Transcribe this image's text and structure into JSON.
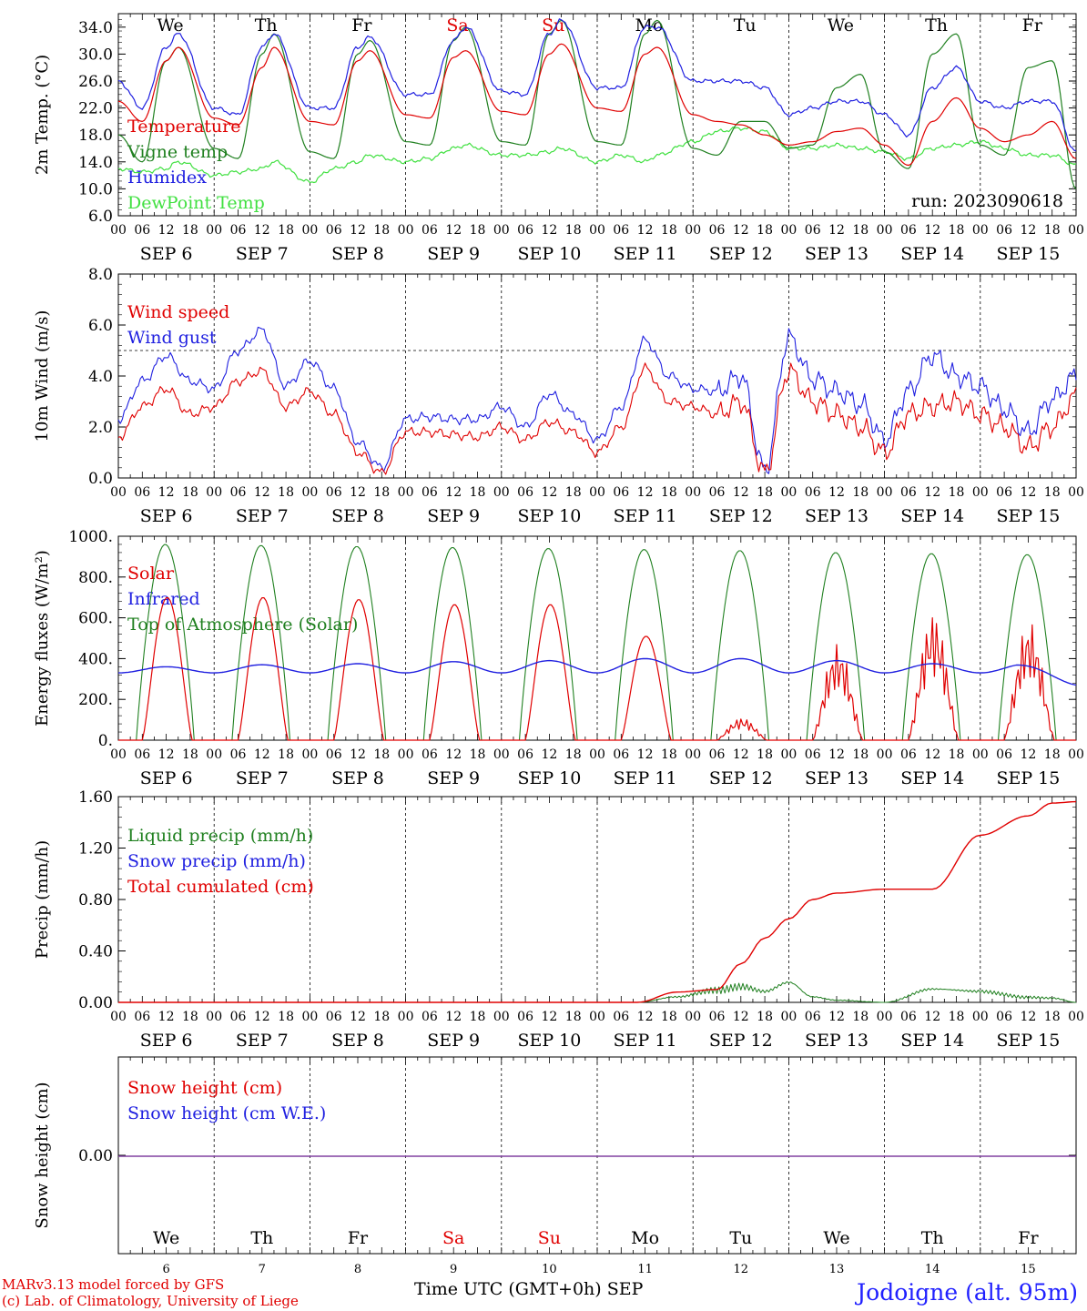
{
  "colors": {
    "red": "#e00000",
    "green": "#208020",
    "blue": "#2020e0",
    "lightgreen": "#40e040",
    "purple": "#8040a0",
    "weekend": "#e00000"
  },
  "days": {
    "names": [
      "We",
      "Th",
      "Fr",
      "Sa",
      "Su",
      "Mo",
      "Tu",
      "We",
      "Th",
      "Fr"
    ],
    "weekend": [
      false,
      false,
      false,
      true,
      true,
      false,
      false,
      false,
      false,
      false
    ],
    "dates": [
      "SEP 6",
      "SEP 7",
      "SEP 8",
      "SEP 9",
      "SEP 10",
      "SEP 11",
      "SEP 12",
      "SEP 13",
      "SEP 14",
      "SEP 15"
    ],
    "numbers": [
      "6",
      "7",
      "8",
      "9",
      "10",
      "11",
      "12",
      "13",
      "14",
      "15"
    ],
    "hours": [
      "00",
      "06",
      "12",
      "18"
    ],
    "final_hour": "00"
  },
  "footer": {
    "credit_line1": "MARv3.13 model forced by GFS",
    "credit_line2": "(c) Lab. of Climatology, University of Liege",
    "time_label": "Time UTC (GMT+0h) SEP",
    "station": "Jodoigne (alt. 95m)"
  },
  "chart_data": [
    {
      "type": "line",
      "ylabel": "2m Temp. (°C)",
      "ylim": [
        6,
        36
      ],
      "yticks": [
        "6.0",
        "10.0",
        "14.0",
        "18.0",
        "22.0",
        "26.0",
        "30.0",
        "34.0"
      ],
      "annotation": "run: 2023090618",
      "x_hours": [
        0,
        6,
        12,
        15,
        24,
        30,
        36,
        39,
        48,
        54,
        60,
        63,
        72,
        78,
        84,
        87,
        96,
        102,
        108,
        111,
        120,
        126,
        132,
        135,
        144,
        150,
        156,
        162,
        168,
        174,
        180,
        186,
        192,
        198,
        204,
        210,
        216,
        222,
        228,
        234,
        240
      ],
      "series": [
        {
          "name": "Temperature",
          "color": "red",
          "values": [
            23,
            20,
            29,
            31,
            20.5,
            19.5,
            28,
            31,
            20,
            19.5,
            29,
            30.5,
            21,
            20.5,
            29.5,
            30.5,
            21.5,
            21,
            30,
            31.5,
            22,
            21.5,
            30,
            31,
            21,
            20,
            19.5,
            18,
            16.5,
            17,
            18.5,
            19,
            16.5,
            13.5,
            20,
            23.5,
            19,
            17,
            18,
            20,
            14.5
          ]
        },
        {
          "name": "Vigne temp",
          "color": "green",
          "values": [
            18,
            14,
            29,
            31,
            16,
            14.5,
            30,
            33,
            15.5,
            14.5,
            30,
            32,
            17,
            16.5,
            32,
            34,
            17,
            16.5,
            33,
            35,
            17,
            16.5,
            33,
            35,
            16,
            15,
            20,
            20,
            16,
            16.5,
            25,
            27,
            15.5,
            13,
            30,
            33,
            16.5,
            15,
            28,
            29,
            10
          ]
        },
        {
          "name": "Humidex",
          "color": "blue",
          "values": [
            26,
            22,
            31,
            33,
            22,
            21,
            31,
            33,
            22,
            22,
            31,
            32.5,
            24,
            24,
            32,
            34,
            24.5,
            24,
            33,
            35,
            25,
            25,
            34,
            34,
            26,
            26,
            26,
            25,
            21,
            22,
            23,
            23,
            21,
            18,
            25,
            28,
            23,
            22,
            23,
            23,
            15.5
          ]
        },
        {
          "name": "DewPoint Temp",
          "color": "lightgreen",
          "values": [
            13,
            12.5,
            13,
            14,
            12,
            12.5,
            13,
            14,
            11,
            13,
            14,
            15,
            14,
            14.5,
            16,
            16.5,
            15,
            15,
            15.5,
            16,
            14,
            15,
            14,
            15,
            17,
            18.5,
            19,
            18.5,
            16,
            16,
            16.5,
            16,
            15.5,
            14.5,
            16,
            16.5,
            17,
            16,
            15,
            15,
            13.5
          ]
        }
      ],
      "legend_placement": "left"
    },
    {
      "type": "line",
      "ylabel": "10m Wind (m/s)",
      "ylim": [
        0,
        8
      ],
      "yticks": [
        "0.0",
        "2.0",
        "4.0",
        "6.0",
        "8.0"
      ],
      "reference_line": 5,
      "x_hours": [
        0,
        6,
        12,
        18,
        24,
        30,
        36,
        42,
        48,
        54,
        60,
        66,
        72,
        78,
        84,
        90,
        96,
        102,
        108,
        114,
        120,
        126,
        132,
        138,
        144,
        150,
        156,
        162,
        168,
        174,
        180,
        186,
        192,
        198,
        204,
        210,
        216,
        222,
        228,
        234,
        240
      ],
      "series": [
        {
          "name": "Wind speed",
          "color": "red",
          "values": [
            1.6,
            2.8,
            3.5,
            2.5,
            2.8,
            3.8,
            4.2,
            2.8,
            3.4,
            2.5,
            1,
            0.2,
            1.8,
            1.8,
            1.7,
            1.6,
            2,
            1.5,
            2.2,
            1.8,
            1,
            2,
            4.3,
            3,
            2.8,
            2.5,
            3,
            0.2,
            4.2,
            3,
            2.5,
            2,
            1,
            2.5,
            2.8,
            3,
            2.5,
            2,
            1.2,
            2,
            3.2
          ]
        },
        {
          "name": "Wind gust",
          "color": "blue",
          "values": [
            2.3,
            3.8,
            4.8,
            3.8,
            3.5,
            5,
            5.8,
            3.6,
            4.6,
            3.5,
            1.4,
            0.4,
            2.3,
            2.4,
            2.3,
            2.3,
            2.8,
            2,
            3.3,
            2.5,
            1.5,
            2.8,
            5.4,
            4,
            3.5,
            3.4,
            4,
            0.3,
            5.5,
            3.9,
            3.4,
            2.9,
            1.5,
            3.4,
            4.8,
            4,
            3.6,
            2.7,
            1.8,
            3.1,
            4
          ]
        }
      ],
      "legend_placement": "left"
    },
    {
      "type": "line",
      "ylabel": "Energy fluxes (W/m²)",
      "ylim": [
        0,
        1000
      ],
      "yticks": [
        "0.",
        "200.",
        "400.",
        "600.",
        "800.",
        "1000."
      ],
      "series": [
        {
          "name": "Solar",
          "color": "red",
          "daily_peak": [
            700,
            700,
            690,
            665,
            665,
            510,
            110,
            470,
            625,
            580
          ]
        },
        {
          "name": "Infrared",
          "color": "blue",
          "daily_peak": [
            360,
            370,
            375,
            385,
            390,
            400,
            400,
            390,
            375,
            375
          ]
        },
        {
          "name": "Top of Atmosphere (Solar)",
          "color": "green",
          "daily_peak": [
            960,
            955,
            950,
            945,
            940,
            935,
            930,
            920,
            915,
            910
          ]
        }
      ],
      "legend_placement": "left"
    },
    {
      "type": "line",
      "ylabel": "Precip (mm/h)",
      "ylim": [
        0,
        1.6
      ],
      "yticks": [
        "0.00",
        "0.40",
        "0.80",
        "1.20",
        "1.60"
      ],
      "x_hours": [
        0,
        130,
        140,
        150,
        156,
        162,
        168,
        174,
        180,
        192,
        204,
        216,
        228,
        234,
        240
      ],
      "series": [
        {
          "name": "Liquid precip (mm/h)",
          "color": "green",
          "values": [
            0,
            0,
            0.05,
            0.12,
            0.15,
            0.1,
            0.18,
            0.05,
            0.02,
            0,
            0.12,
            0.1,
            0.05,
            0.04,
            0
          ]
        },
        {
          "name": "Snow precip (mm/h)",
          "color": "blue",
          "values": [
            0,
            0,
            0,
            0,
            0,
            0,
            0,
            0,
            0,
            0,
            0,
            0,
            0,
            0,
            0
          ]
        },
        {
          "name": "Total cumulated (cm)",
          "color": "red",
          "values": [
            0,
            0,
            0.08,
            0.1,
            0.3,
            0.5,
            0.65,
            0.8,
            0.85,
            0.88,
            0.88,
            1.3,
            1.45,
            1.55,
            1.56
          ]
        }
      ],
      "legend_placement": "left"
    },
    {
      "type": "line",
      "ylabel": "Snow height (cm)",
      "ylim": [
        -1,
        1
      ],
      "yticks": [
        "0.00"
      ],
      "series": [
        {
          "name": "Snow height (cm)",
          "color": "red",
          "values": [
            0,
            0
          ]
        },
        {
          "name": "Snow height (cm W.E.)",
          "color": "blue",
          "values": [
            0,
            0
          ]
        }
      ],
      "legend_placement": "left"
    }
  ]
}
